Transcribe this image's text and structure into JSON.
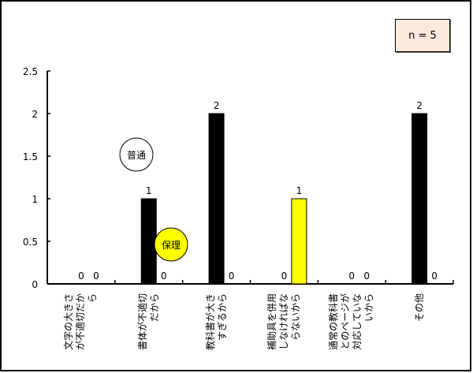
{
  "chart_data": {
    "type": "bar",
    "categories": [
      "文字の大きさが不適切だから",
      "書体が不適切だから",
      "教科書が大きすぎるから",
      "補助具を併用しなければならないから",
      "通常の教科書とのページが対応していないから",
      "その他"
    ],
    "category_lines": [
      [
        "文字の大きさ",
        "が不適切だか",
        "ら"
      ],
      [
        "書体が不適切",
        "だから"
      ],
      [
        "教科書が大き",
        "すぎるから"
      ],
      [
        "補助具を併用",
        "しなければな",
        "らないから"
      ],
      [
        "通常の教科書",
        "とのページが",
        "対応していな",
        "いから"
      ],
      [
        "その他"
      ]
    ],
    "series": [
      {
        "name": "普通",
        "values": [
          0,
          1,
          2,
          0,
          0,
          2
        ],
        "color": "#000000"
      },
      {
        "name": "保理",
        "values": [
          0,
          0,
          0,
          1,
          0,
          0
        ],
        "color": "#ffff00"
      }
    ],
    "ylim": [
      0,
      2.5
    ],
    "yticks": [
      "0",
      "0.5",
      "1",
      "1.5",
      "2",
      "2.5"
    ],
    "grid": false,
    "legend": "inside labels (普通 white circle, 保理 yellow circle)",
    "annotation": "n = 5"
  }
}
